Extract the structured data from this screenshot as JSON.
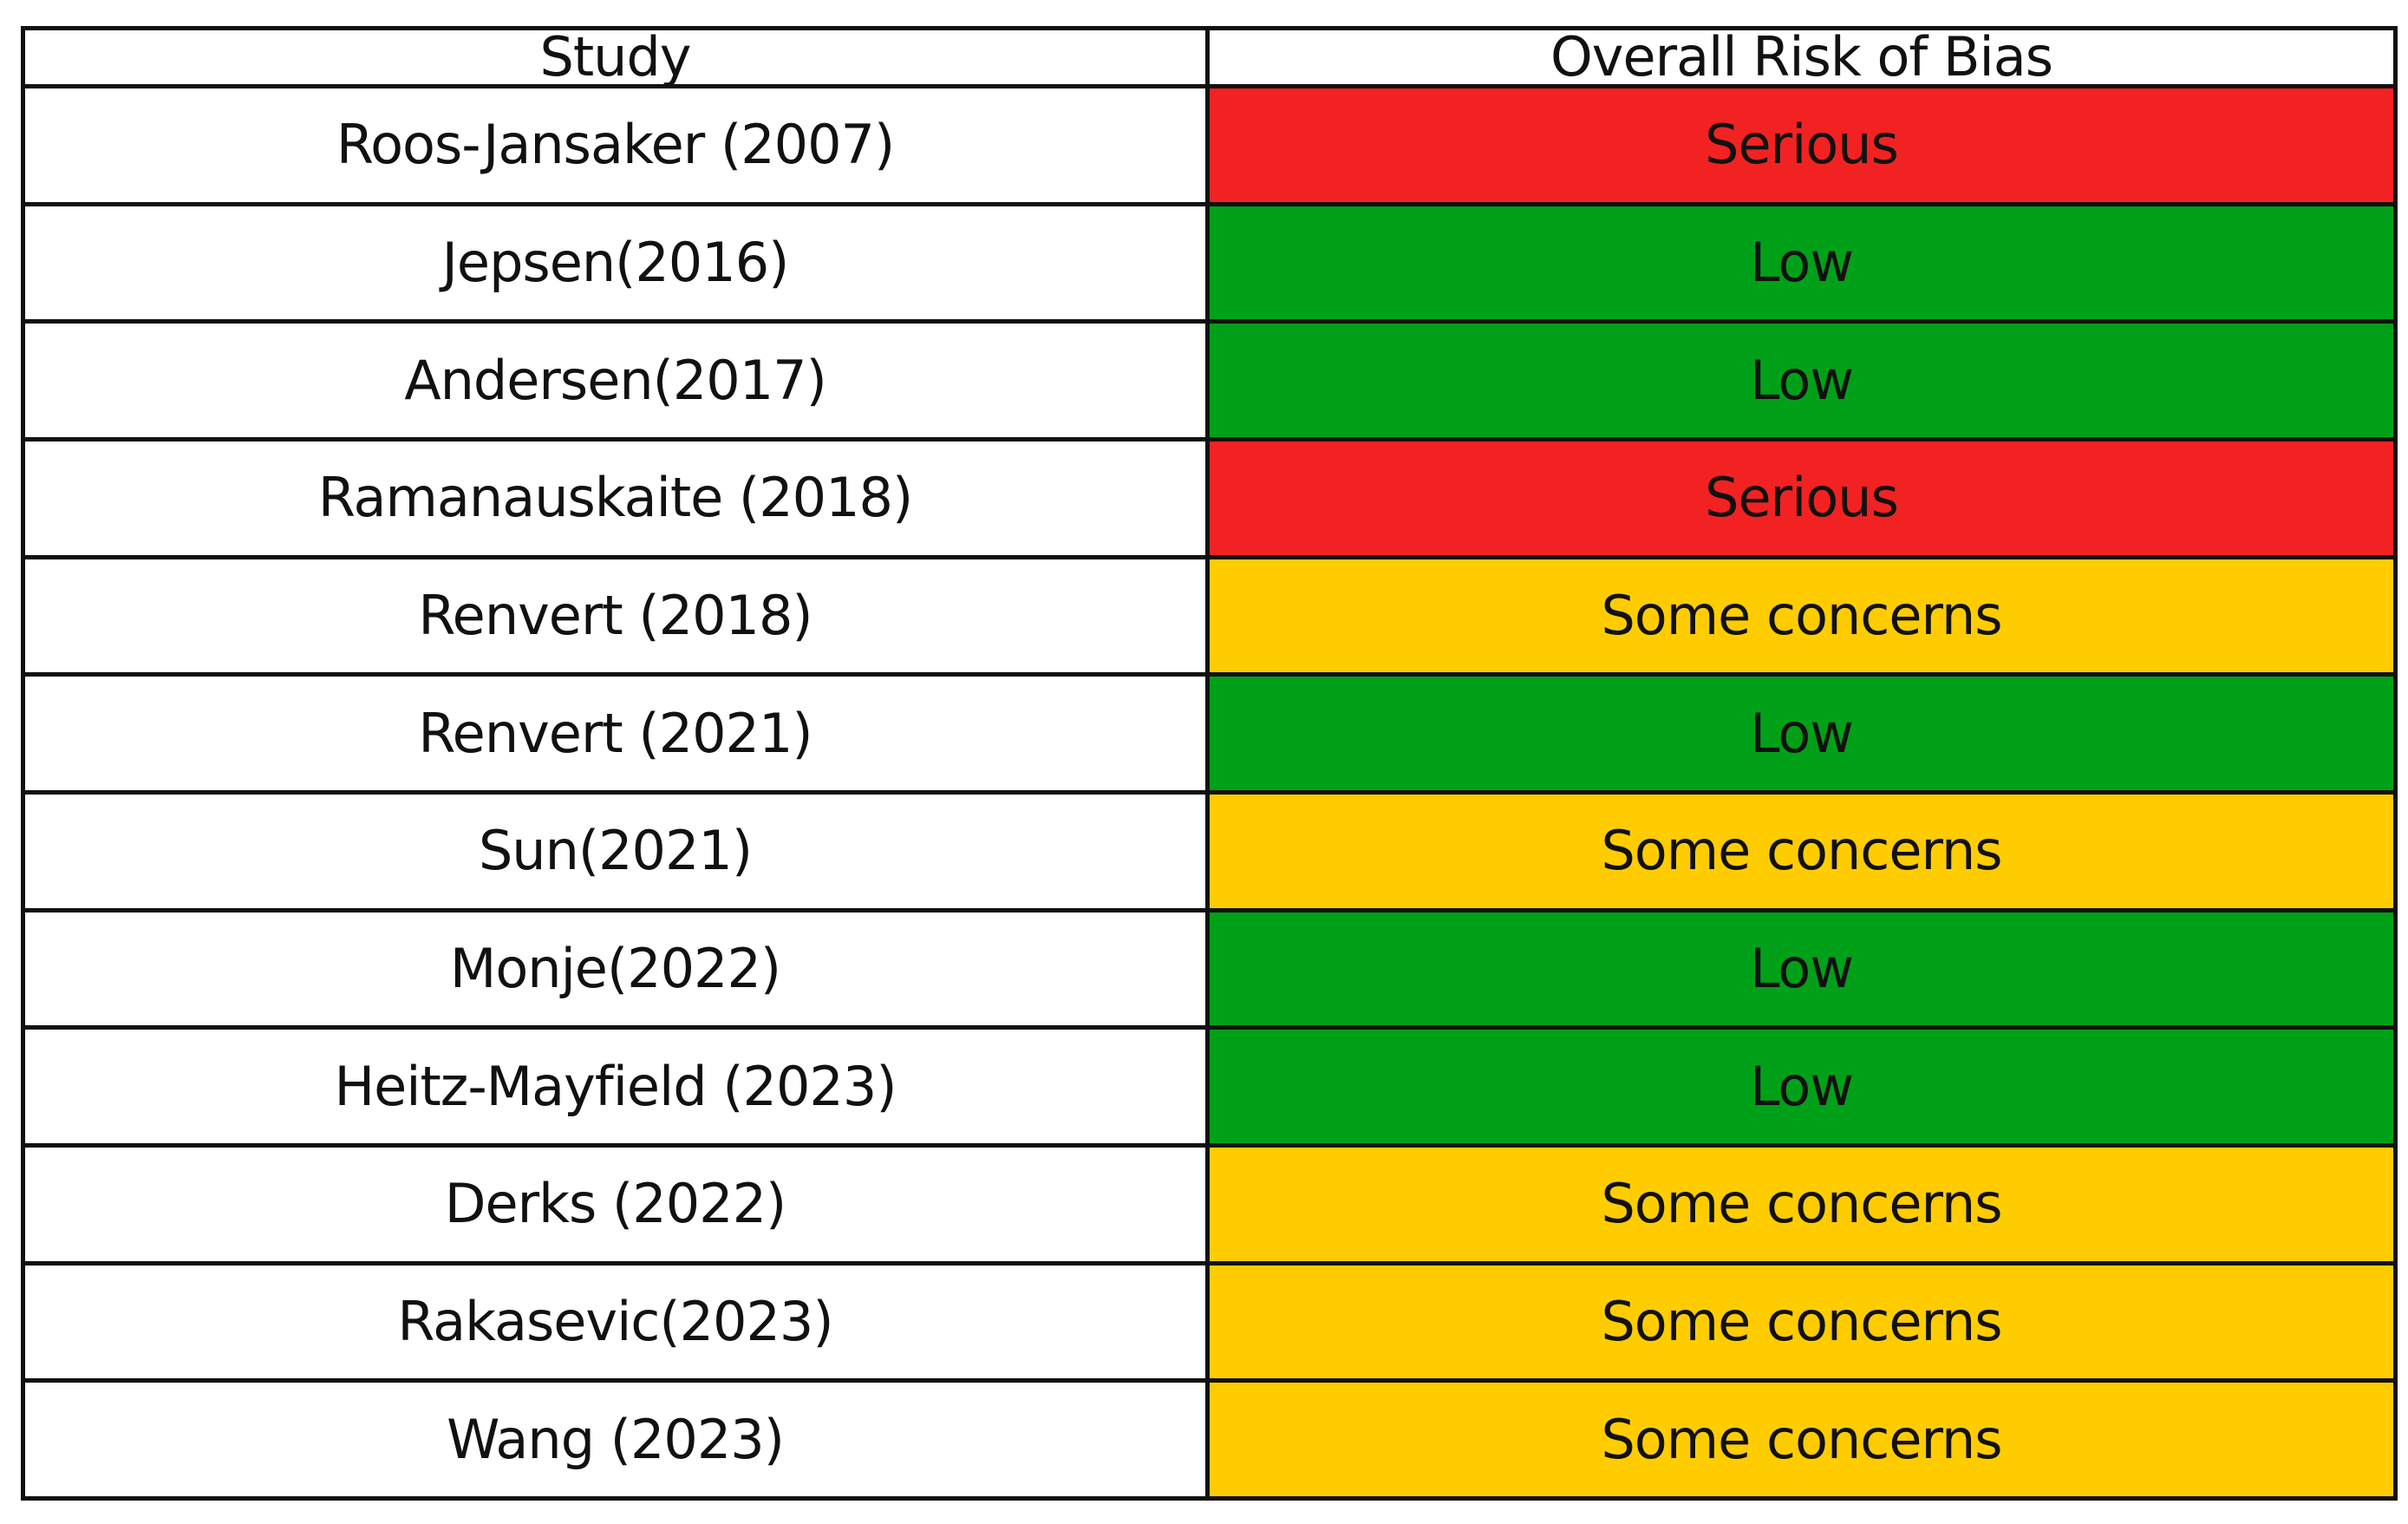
{
  "chart_data": {
    "type": "table",
    "columns": [
      "Study",
      "Overall Risk of Bias"
    ],
    "rows": [
      {
        "study": "Roos-Jansaker  (2007)",
        "risk": "Serious"
      },
      {
        "study": "Jepsen(2016)",
        "risk": "Low"
      },
      {
        "study": "Andersen(2017)",
        "risk": "Low"
      },
      {
        "study": "Ramanauskaite (2018)",
        "risk": "Serious"
      },
      {
        "study": "Renvert (2018)",
        "risk": "Some concerns"
      },
      {
        "study": "Renvert (2021)",
        "risk": "Low"
      },
      {
        "study": "Sun(2021)",
        "risk": "Some concerns"
      },
      {
        "study": "Monje(2022)",
        "risk": "Low"
      },
      {
        "study": "Heitz-Mayfield (2023)",
        "risk": "Low"
      },
      {
        "study": "Derks (2022)",
        "risk": "Some concerns"
      },
      {
        "study": "Rakasevic(2023)",
        "risk": "Some concerns"
      },
      {
        "study": "Wang (2023)",
        "risk": "Some concerns"
      }
    ],
    "risk_colors": {
      "Serious": "#f22222",
      "Low": "#00a018",
      "Some concerns": "#ffcc00"
    }
  }
}
